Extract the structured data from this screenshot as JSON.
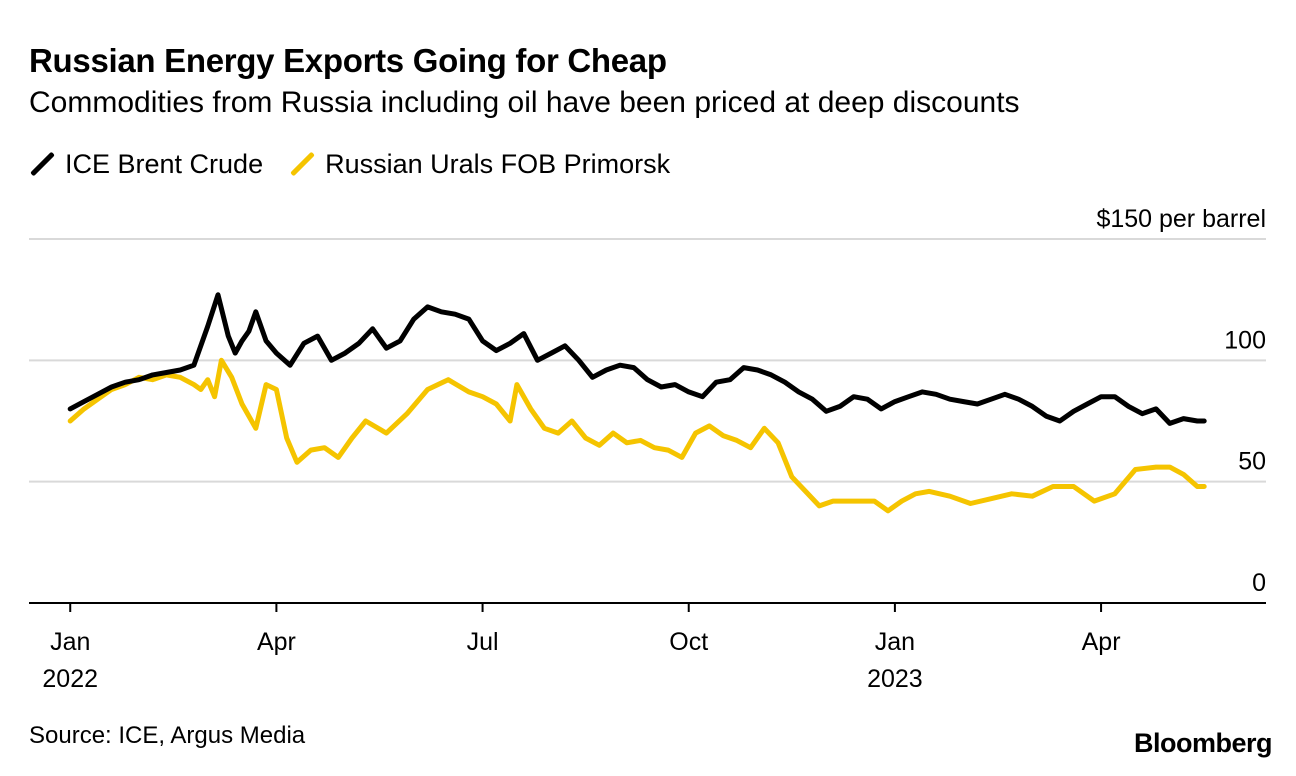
{
  "header": {
    "title": "Russian Energy Exports Going for Cheap",
    "subtitle": "Commodities from Russia including oil have been priced at deep discounts"
  },
  "footer": {
    "source": "Source: ICE, Argus Media",
    "brand": "Bloomberg"
  },
  "chart_data": {
    "type": "line",
    "title": "Russian Energy Exports Going for Cheap",
    "subtitle": "Commodities from Russia including oil have been priced at deep discounts",
    "unit_label": "$150 per barrel",
    "ylabel": "$ per barrel",
    "xlabel": "",
    "ylim": [
      0,
      150
    ],
    "xlim": [
      -0.6,
      17.4
    ],
    "grid": true,
    "legend_position": "top-left",
    "y_ticks": [
      {
        "value": 150,
        "label": "$150 per barrel"
      },
      {
        "value": 100,
        "label": "100"
      },
      {
        "value": 50,
        "label": "50"
      },
      {
        "value": 0,
        "label": "0"
      }
    ],
    "x_ticks": [
      {
        "value": 0,
        "label": "Jan",
        "sublabel": "2022"
      },
      {
        "value": 3,
        "label": "Apr",
        "sublabel": ""
      },
      {
        "value": 6,
        "label": "Jul",
        "sublabel": ""
      },
      {
        "value": 9,
        "label": "Oct",
        "sublabel": ""
      },
      {
        "value": 12,
        "label": "Jan",
        "sublabel": "2023"
      },
      {
        "value": 15,
        "label": "Apr",
        "sublabel": ""
      }
    ],
    "series": [
      {
        "name": "ICE Brent Crude",
        "color": "#000000",
        "x": [
          0,
          0.2,
          0.4,
          0.6,
          0.8,
          1.0,
          1.2,
          1.4,
          1.6,
          1.8,
          2.0,
          2.15,
          2.3,
          2.4,
          2.5,
          2.6,
          2.7,
          2.85,
          3.0,
          3.2,
          3.4,
          3.6,
          3.8,
          4.0,
          4.2,
          4.4,
          4.6,
          4.8,
          5.0,
          5.2,
          5.4,
          5.6,
          5.8,
          6.0,
          6.2,
          6.4,
          6.6,
          6.8,
          7.0,
          7.2,
          7.4,
          7.6,
          7.8,
          8.0,
          8.2,
          8.4,
          8.6,
          8.8,
          9.0,
          9.2,
          9.4,
          9.6,
          9.8,
          10.0,
          10.2,
          10.4,
          10.6,
          10.8,
          11.0,
          11.2,
          11.4,
          11.6,
          11.8,
          12.0,
          12.2,
          12.4,
          12.6,
          12.8,
          13.0,
          13.2,
          13.4,
          13.6,
          13.8,
          14.0,
          14.2,
          14.4,
          14.6,
          14.8,
          15.0,
          15.2,
          15.4,
          15.6,
          15.8,
          16.0,
          16.2,
          16.4,
          16.5
        ],
        "values": [
          80,
          83,
          86,
          89,
          91,
          92,
          94,
          95,
          96,
          98,
          114,
          127,
          110,
          103,
          108,
          112,
          120,
          108,
          103,
          98,
          107,
          110,
          100,
          103,
          107,
          113,
          105,
          108,
          117,
          122,
          120,
          119,
          117,
          108,
          104,
          107,
          111,
          100,
          103,
          106,
          100,
          93,
          96,
          98,
          97,
          92,
          89,
          90,
          87,
          85,
          91,
          92,
          97,
          96,
          94,
          91,
          87,
          84,
          79,
          81,
          85,
          84,
          80,
          83,
          85,
          87,
          86,
          84,
          83,
          82,
          84,
          86,
          84,
          81,
          77,
          75,
          79,
          82,
          85,
          85,
          81,
          78,
          80,
          74,
          76,
          75,
          75
        ]
      },
      {
        "name": "Russian Urals FOB Primorsk",
        "color": "#f5c400",
        "x": [
          0,
          0.2,
          0.4,
          0.6,
          0.8,
          1.0,
          1.2,
          1.4,
          1.6,
          1.8,
          1.9,
          2.0,
          2.1,
          2.2,
          2.35,
          2.5,
          2.7,
          2.85,
          3.0,
          3.15,
          3.3,
          3.5,
          3.7,
          3.9,
          4.1,
          4.3,
          4.6,
          4.9,
          5.2,
          5.5,
          5.8,
          6.0,
          6.2,
          6.4,
          6.5,
          6.7,
          6.9,
          7.1,
          7.3,
          7.5,
          7.7,
          7.9,
          8.1,
          8.3,
          8.5,
          8.7,
          8.9,
          9.1,
          9.3,
          9.5,
          9.7,
          9.9,
          10.1,
          10.3,
          10.5,
          10.7,
          10.9,
          11.1,
          11.3,
          11.5,
          11.7,
          11.9,
          12.1,
          12.3,
          12.5,
          12.8,
          13.1,
          13.4,
          13.7,
          14.0,
          14.3,
          14.6,
          14.9,
          15.2,
          15.5,
          15.8,
          16.0,
          16.2,
          16.4,
          16.5
        ],
        "values": [
          75,
          80,
          84,
          88,
          90,
          93,
          92,
          94,
          93,
          90,
          88,
          92,
          85,
          100,
          93,
          82,
          72,
          90,
          88,
          68,
          58,
          63,
          64,
          60,
          68,
          75,
          70,
          78,
          88,
          92,
          87,
          85,
          82,
          75,
          90,
          80,
          72,
          70,
          75,
          68,
          65,
          70,
          66,
          67,
          64,
          63,
          60,
          70,
          73,
          69,
          67,
          64,
          72,
          66,
          52,
          46,
          40,
          42,
          42,
          42,
          42,
          38,
          42,
          45,
          46,
          44,
          41,
          43,
          45,
          44,
          48,
          48,
          42,
          45,
          55,
          56,
          56,
          53,
          48,
          48
        ]
      }
    ]
  }
}
